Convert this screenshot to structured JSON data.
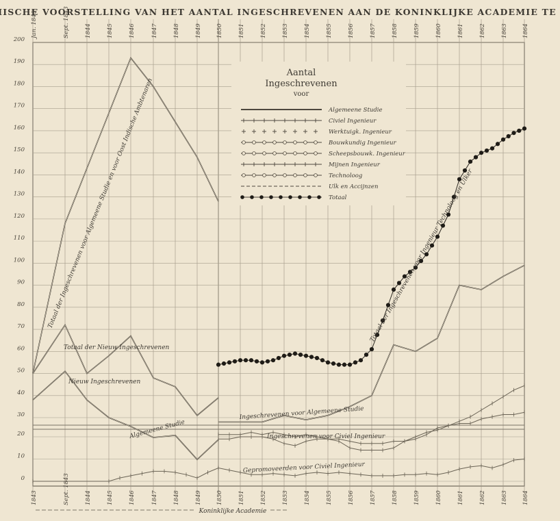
{
  "chart_data": {
    "type": "line",
    "title": "GRAPHISCHE VOORSTELLING VAN HET AANTAL INGESCHREVENEN AAN DE KONINKLIJKE ACADEMIE TE DELFT",
    "top_year_labels": [
      "Jan. 1843",
      "Sept. 1843",
      "1844",
      "1845",
      "1846",
      "1847",
      "1848",
      "1849",
      "1850",
      "1851",
      "1852",
      "1853",
      "1854",
      "1855",
      "1856",
      "1857",
      "1858",
      "1859",
      "1860",
      "1861",
      "1862",
      "1863",
      "1864"
    ],
    "bottom_year_labels": [
      "1843",
      "Sept. 1843",
      "1844",
      "1845",
      "1846",
      "1847",
      "1848",
      "1849",
      "1850",
      "1851",
      "1852",
      "1853",
      "1854",
      "1855",
      "1856",
      "1857",
      "1858",
      "1859",
      "1860",
      "1861",
      "1862",
      "1863",
      "1864"
    ],
    "bottom_caption": "Koninklijke Academie",
    "yticks_upper": [
      30,
      40,
      50,
      60,
      70,
      80,
      90,
      100,
      110,
      120,
      130,
      140,
      150,
      160,
      170,
      180,
      190,
      200
    ],
    "yticks_lower": [
      0,
      10,
      20
    ],
    "ylim_upper": [
      25,
      200
    ],
    "ylim_lower": [
      0,
      22
    ],
    "legend": {
      "heading": "Aantal",
      "heading2": "Ingeschrevenen",
      "sub": "voor",
      "items": [
        "Algemeene Studie",
        "Civiel Ingenieur",
        "Werktuigk. Ingenieur",
        "Bouwkundig Ingenieur",
        "Scheepsbouwk. Ingenieur",
        "Mijnen Ingenieur",
        "Technoloog",
        "Ulk en Accijnzen",
        "Totaal"
      ]
    },
    "series": [
      {
        "style": "solid",
        "x": [
          1843,
          1843.67,
          1846,
          1847,
          1849,
          1850
        ],
        "y": [
          50,
          118,
          193,
          180,
          148,
          128
        ]
      },
      {
        "style": "solid",
        "x": [
          1843,
          1843.67,
          1844,
          1845,
          1846,
          1847,
          1848,
          1849,
          1850
        ],
        "y": [
          50,
          72,
          50,
          58,
          67,
          48,
          44,
          31,
          39
        ]
      },
      {
        "style": "solid",
        "x": [
          1843,
          1843.67,
          1844,
          1845,
          1846,
          1847,
          1848,
          1849,
          1850
        ],
        "y": [
          38,
          51,
          38,
          30,
          26,
          21,
          22,
          11,
          20
        ]
      },
      {
        "style": "dotted",
        "x": [
          1850,
          1850.5,
          1851,
          1851.5,
          1852,
          1852.5,
          1853,
          1853.5,
          1854,
          1854.5,
          1855,
          1855.5,
          1856,
          1856.5,
          1857,
          1857.5,
          1858,
          1858.5,
          1859,
          1859.5,
          1860,
          1860.5,
          1861,
          1861.5,
          1862,
          1862.5,
          1863,
          1863.5,
          1864
        ],
        "y": [
          54,
          55,
          56,
          56,
          55,
          56,
          58,
          59,
          58,
          57,
          55,
          54,
          54,
          56,
          61,
          74,
          88,
          94,
          98,
          104,
          112,
          122,
          138,
          146,
          150,
          152,
          156,
          159,
          161
        ]
      },
      {
        "style": "solid",
        "x": [
          1850,
          1851,
          1852,
          1853,
          1854,
          1855,
          1856,
          1857,
          1858,
          1859,
          1860,
          1861,
          1862,
          1863,
          1864
        ],
        "y": [
          28,
          28,
          28,
          31,
          29,
          31,
          35,
          40,
          63,
          60,
          66,
          90,
          88,
          94,
          99
        ]
      },
      {
        "style": "thin",
        "x": [
          1850,
          1850.5,
          1851,
          1851.5,
          1852,
          1852.5,
          1853,
          1853.5,
          1854,
          1854.5,
          1855,
          1855.5,
          1856,
          1856.5,
          1857,
          1857.5,
          1858,
          1858.5,
          1859,
          1859.5,
          1860,
          1860.5,
          1861,
          1861.5,
          1862,
          1862.5,
          1863,
          1863.5,
          1864
        ],
        "y": [
          30,
          30,
          30,
          31,
          30,
          31,
          30,
          29,
          30,
          29,
          28,
          28,
          27,
          26,
          26,
          26,
          27,
          27,
          28,
          30,
          33,
          34,
          36,
          38,
          41,
          44,
          47,
          50,
          52
        ]
      },
      {
        "style": "thin",
        "x": [
          1850,
          1850.5,
          1851,
          1851.5,
          1852,
          1852.5,
          1853,
          1853.5,
          1854,
          1854.5,
          1855,
          1855.5,
          1856,
          1856.5,
          1857,
          1857.5,
          1858,
          1858.5,
          1859,
          1859.5,
          1860,
          1860.5,
          1861,
          1861.5,
          1862,
          1862.5,
          1863,
          1863.5,
          1864
        ],
        "y": [
          19,
          19,
          20,
          20,
          20,
          19,
          17,
          16,
          18,
          19,
          19,
          18,
          15,
          14,
          14,
          14,
          15,
          18,
          20,
          22,
          23,
          25,
          26,
          26,
          28,
          29,
          30,
          30,
          31
        ]
      },
      {
        "style": "thin",
        "x": [
          1843,
          1845,
          1845.5,
          1846,
          1846.5,
          1847,
          1847.5,
          1848,
          1848.5,
          1849,
          1849.5,
          1850,
          1850.5,
          1851,
          1851.5,
          1852,
          1852.5,
          1853,
          1853.5,
          1854,
          1854.5,
          1855,
          1855.5,
          1856,
          1856.5,
          1857,
          1857.5,
          1858,
          1858.5,
          1859,
          1859.5,
          1860,
          1860.5,
          1861,
          1861.5,
          1862,
          1862.5,
          1863,
          1863.5,
          1864
        ],
        "y": [
          0,
          0,
          3,
          5,
          7,
          9,
          9,
          8,
          6,
          3,
          8,
          12,
          10,
          8,
          6,
          6,
          7,
          6,
          5,
          7,
          8,
          7,
          8,
          7,
          6,
          5,
          5,
          5,
          6,
          6,
          7,
          6,
          8,
          11,
          13,
          14,
          12,
          15,
          19,
          20
        ]
      }
    ],
    "annotations": [
      "Totaal der Ingeschrevenen voor Algemeene Studie en voor Oost Indische Ambtenaren",
      "Totaal der Nieuw Ingeschrevenen",
      "Nieuw Ingeschrevenen",
      "Algemeene Studie",
      "Totaal der Ingeschrevenen voor Ingenieur Technoloog en Ulker",
      "Ingeschrevenen voor Algemeene Studie",
      "Ingeschrevenen voor Civiel Ingenieur",
      "Gepromoveerden voor Civiel Ingenieur"
    ]
  }
}
